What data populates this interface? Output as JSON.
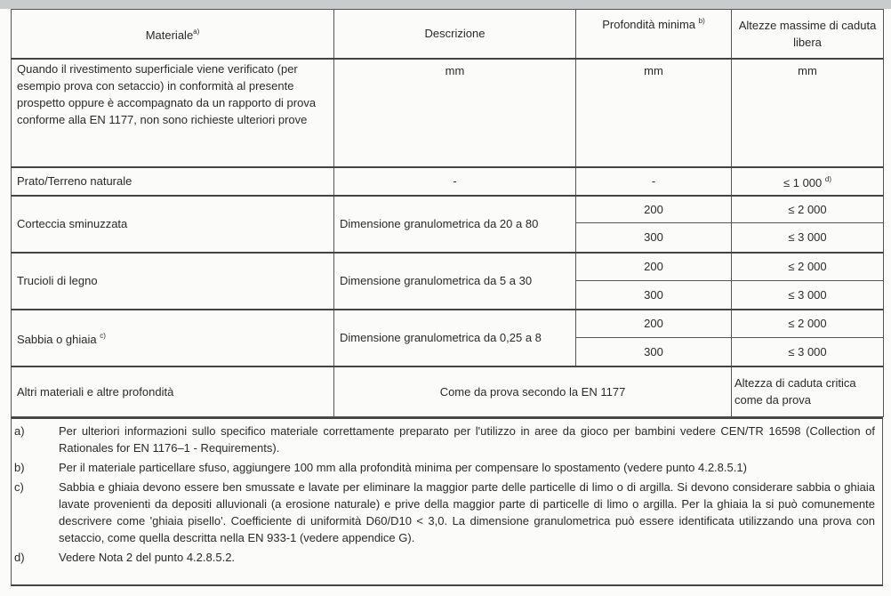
{
  "header": {
    "materiale": "Materiale",
    "materiale_sup": "a)",
    "descrizione": "Descrizione",
    "profondita": "Profondità minima",
    "profondita_sup": "b)",
    "altezze": "Altezze massime di caduta libera"
  },
  "units_row": {
    "text": "Quando il rivestimento superficiale viene verificato (per esempio prova con setaccio) in conformità al presente prospetto oppure è accompagnato da un rapporto di prova conforme alla EN 1177, non sono richieste ulteriori prove",
    "unit_descrizione": "mm",
    "unit_profondita": "mm",
    "unit_altezza": "mm"
  },
  "prato": {
    "materiale": "Prato/Terreno naturale",
    "descrizione": "-",
    "profondita": "-",
    "altezza": "≤ 1 000",
    "altezza_sup": "d)"
  },
  "rows": [
    {
      "materiale": "Corteccia sminuzzata",
      "sup": "",
      "descrizione": "Dimensione granulometrica da 20 a 80",
      "profondita": [
        "200",
        "300"
      ],
      "altezza": [
        "≤ 2 000",
        "≤ 3 000"
      ]
    },
    {
      "materiale": "Trucioli di legno",
      "sup": "",
      "descrizione": "Dimensione granulometrica da 5 a 30",
      "profondita": [
        "200",
        "300"
      ],
      "altezza": [
        "≤ 2 000",
        "≤ 3 000"
      ]
    },
    {
      "materiale": "Sabbia o ghiaia",
      "sup": "c)",
      "descrizione": "Dimensione granulometrica da 0,25 a 8",
      "profondita": [
        "200",
        "300"
      ],
      "altezza": [
        "≤ 2 000",
        "≤ 3 000"
      ]
    }
  ],
  "altri": {
    "materiale": "Altri materiali e altre profondità",
    "descrizione": "Come da prova secondo la EN 1177",
    "altezza": "Altezza di caduta critica come da prova"
  },
  "notes": [
    {
      "label": "a)",
      "text": "Per ulteriori informazioni sullo specifico materiale correttamente preparato per l'utilizzo in aree da gioco per bambini vedere CEN/TR 16598 (Collection of Rationales for EN 1176–1 - Requirements)."
    },
    {
      "label": "b)",
      "text": "Per il materiale particellare sfuso, aggiungere 100 mm alla profondità minima per compensare lo spostamento (vedere punto 4.2.8.5.1)"
    },
    {
      "label": "c)",
      "text": "Sabbia e ghiaia devono essere ben smussate e lavate per eliminare la maggior parte delle particelle di limo o di argilla. Si devono considerare sabbia o ghiaia lavate provenienti da depositi alluvionali (a erosione naturale) e prive della maggior parte di particelle di limo o argilla. Per la ghiaia la si può comunemente descrivere come 'ghiaia pisello'. Coefficiente di uniformità D60/D10 < 3,0. La dimensione granulometrica può essere identificata utilizzando una prova con setaccio, come quella descritta nella EN 933-1 (vedere appendice G)."
    },
    {
      "label": "d)",
      "text": "Vedere Nota 2 del punto 4.2.8.5.2."
    }
  ]
}
